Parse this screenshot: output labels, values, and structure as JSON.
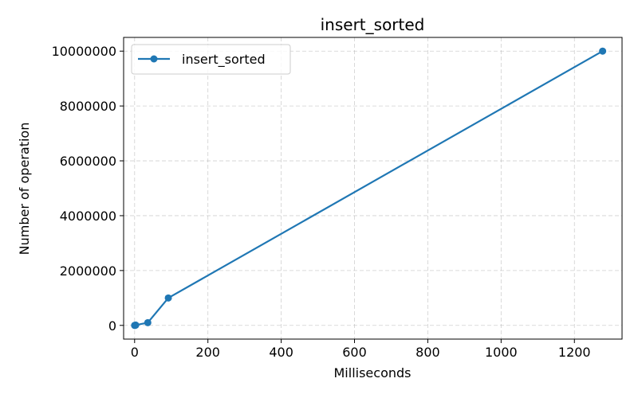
{
  "chart_data": {
    "type": "line",
    "title": "insert_sorted",
    "xlabel": "Milliseconds",
    "ylabel": "Number of operation",
    "xlim": [
      -30,
      1330
    ],
    "ylim": [
      -500000,
      10500000
    ],
    "x_ticks": [
      0,
      200,
      400,
      600,
      800,
      1000,
      1200
    ],
    "y_ticks": [
      0,
      2000000,
      4000000,
      6000000,
      8000000,
      10000000
    ],
    "x_tick_labels": [
      "0",
      "200",
      "400",
      "600",
      "800",
      "1000",
      "1200"
    ],
    "y_tick_labels": [
      "0",
      "2000000",
      "4000000",
      "6000000",
      "8000000",
      "10000000"
    ],
    "grid": true,
    "legend_position": "top-left",
    "series": [
      {
        "name": "insert_sorted",
        "color": "#1f77b4",
        "x": [
          0,
          1,
          3,
          36,
          92,
          1277
        ],
        "y": [
          0,
          100,
          10000,
          100000,
          1000000,
          10000000
        ]
      }
    ]
  }
}
